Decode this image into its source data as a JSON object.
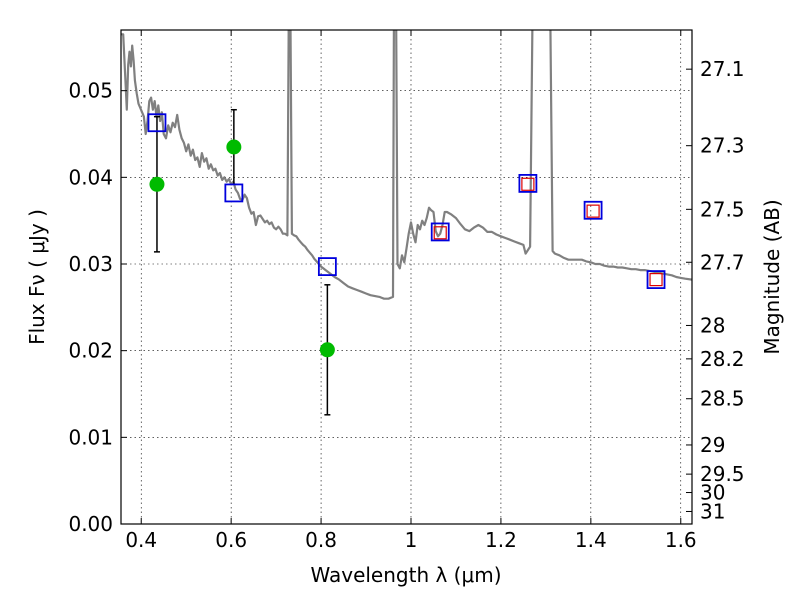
{
  "chart_data": {
    "type": "scatter",
    "xlabel": "Wavelength  λ (μm)",
    "ylabel_left": "Flux  Fν  ( μJy )",
    "ylabel_right": "Magnitude (AB)",
    "xlim": [
      0.355,
      1.625
    ],
    "ylim": [
      0.0,
      0.057
    ],
    "grid": true,
    "x_ticks": [
      {
        "value": 0.4,
        "label": "0.4"
      },
      {
        "value": 0.6,
        "label": "0.6"
      },
      {
        "value": 0.8,
        "label": "0.8"
      },
      {
        "value": 1.0,
        "label": "1"
      },
      {
        "value": 1.2,
        "label": "1.2"
      },
      {
        "value": 1.4,
        "label": "1.4"
      },
      {
        "value": 1.6,
        "label": "1.6"
      }
    ],
    "y_ticks": [
      {
        "value": 0.0,
        "label": "0.00"
      },
      {
        "value": 0.01,
        "label": "0.01"
      },
      {
        "value": 0.02,
        "label": "0.02"
      },
      {
        "value": 0.03,
        "label": "0.03"
      },
      {
        "value": 0.04,
        "label": "0.04"
      },
      {
        "value": 0.05,
        "label": "0.05"
      }
    ],
    "right_ticks": [
      {
        "mag": 27.1,
        "label": "27.1"
      },
      {
        "mag": 27.3,
        "label": "27.3"
      },
      {
        "mag": 27.5,
        "label": "27.5"
      },
      {
        "mag": 27.7,
        "label": "27.7"
      },
      {
        "mag": 28.0,
        "label": "28"
      },
      {
        "mag": 28.2,
        "label": "28.2"
      },
      {
        "mag": 28.5,
        "label": "28.5"
      },
      {
        "mag": 29.0,
        "label": "29"
      },
      {
        "mag": 29.5,
        "label": "29.5"
      },
      {
        "mag": 30.0,
        "label": "30"
      },
      {
        "mag": 31.0,
        "label": "31"
      }
    ],
    "series": [
      {
        "kind": "line",
        "color": "#808080",
        "points": [
          [
            0.355,
            0.0565
          ],
          [
            0.36,
            0.0565
          ],
          [
            0.365,
            0.051
          ],
          [
            0.368,
            0.0478
          ],
          [
            0.371,
            0.053
          ],
          [
            0.374,
            0.0545
          ],
          [
            0.377,
            0.0528
          ],
          [
            0.38,
            0.0552
          ],
          [
            0.383,
            0.0535
          ],
          [
            0.386,
            0.0512
          ],
          [
            0.39,
            0.0497
          ],
          [
            0.394,
            0.0485
          ],
          [
            0.398,
            0.048
          ],
          [
            0.402,
            0.0475
          ],
          [
            0.406,
            0.047
          ],
          [
            0.41,
            0.045
          ],
          [
            0.414,
            0.0465
          ],
          [
            0.418,
            0.0488
          ],
          [
            0.422,
            0.0492
          ],
          [
            0.426,
            0.0478
          ],
          [
            0.43,
            0.0488
          ],
          [
            0.434,
            0.047
          ],
          [
            0.438,
            0.0483
          ],
          [
            0.442,
            0.0465
          ],
          [
            0.446,
            0.0475
          ],
          [
            0.45,
            0.045
          ],
          [
            0.455,
            0.0445
          ],
          [
            0.46,
            0.046
          ],
          [
            0.465,
            0.0452
          ],
          [
            0.47,
            0.0463
          ],
          [
            0.475,
            0.0458
          ],
          [
            0.48,
            0.0472
          ],
          [
            0.485,
            0.0455
          ],
          [
            0.49,
            0.0445
          ],
          [
            0.495,
            0.044
          ],
          [
            0.5,
            0.043
          ],
          [
            0.505,
            0.0438
          ],
          [
            0.51,
            0.0425
          ],
          [
            0.515,
            0.0432
          ],
          [
            0.52,
            0.042
          ],
          [
            0.525,
            0.0423
          ],
          [
            0.53,
            0.0412
          ],
          [
            0.535,
            0.0428
          ],
          [
            0.54,
            0.0418
          ],
          [
            0.545,
            0.0422
          ],
          [
            0.55,
            0.041
          ],
          [
            0.555,
            0.0415
          ],
          [
            0.56,
            0.0408
          ],
          [
            0.565,
            0.041
          ],
          [
            0.57,
            0.0402
          ],
          [
            0.575,
            0.0405
          ],
          [
            0.58,
            0.0397
          ],
          [
            0.585,
            0.04
          ],
          [
            0.59,
            0.0395
          ],
          [
            0.595,
            0.0398
          ],
          [
            0.6,
            0.0392
          ],
          [
            0.605,
            0.0395
          ],
          [
            0.61,
            0.0386
          ],
          [
            0.615,
            0.0382
          ],
          [
            0.62,
            0.0375
          ],
          [
            0.625,
            0.0374
          ],
          [
            0.63,
            0.038
          ],
          [
            0.635,
            0.0376
          ],
          [
            0.64,
            0.0365
          ],
          [
            0.645,
            0.0358
          ],
          [
            0.65,
            0.036
          ],
          [
            0.655,
            0.0345
          ],
          [
            0.66,
            0.0355
          ],
          [
            0.665,
            0.0356
          ],
          [
            0.67,
            0.0352
          ],
          [
            0.675,
            0.0348
          ],
          [
            0.68,
            0.035
          ],
          [
            0.685,
            0.0346
          ],
          [
            0.69,
            0.0348
          ],
          [
            0.695,
            0.0342
          ],
          [
            0.7,
            0.034
          ],
          [
            0.705,
            0.0343
          ],
          [
            0.71,
            0.034
          ],
          [
            0.715,
            0.0335
          ],
          [
            0.72,
            0.0335
          ],
          [
            0.725,
            0.0333
          ],
          [
            0.728,
            0.0575
          ],
          [
            0.732,
            0.0575
          ],
          [
            0.735,
            0.0335
          ],
          [
            0.74,
            0.0333
          ],
          [
            0.745,
            0.0332
          ],
          [
            0.75,
            0.0328
          ],
          [
            0.755,
            0.0325
          ],
          [
            0.76,
            0.0322
          ],
          [
            0.765,
            0.032
          ],
          [
            0.77,
            0.0316
          ],
          [
            0.775,
            0.0313
          ],
          [
            0.78,
            0.031
          ],
          [
            0.785,
            0.0306
          ],
          [
            0.79,
            0.0303
          ],
          [
            0.795,
            0.03
          ],
          [
            0.8,
            0.0297
          ],
          [
            0.81,
            0.0293
          ],
          [
            0.82,
            0.0289
          ],
          [
            0.83,
            0.0285
          ],
          [
            0.84,
            0.0282
          ],
          [
            0.85,
            0.0278
          ],
          [
            0.86,
            0.0274
          ],
          [
            0.87,
            0.0272
          ],
          [
            0.88,
            0.027
          ],
          [
            0.89,
            0.0268
          ],
          [
            0.9,
            0.0266
          ],
          [
            0.91,
            0.0264
          ],
          [
            0.92,
            0.0263
          ],
          [
            0.93,
            0.0262
          ],
          [
            0.94,
            0.026
          ],
          [
            0.95,
            0.026
          ],
          [
            0.96,
            0.0262
          ],
          [
            0.962,
            0.0575
          ],
          [
            0.967,
            0.0575
          ],
          [
            0.97,
            0.03
          ],
          [
            0.975,
            0.0295
          ],
          [
            0.98,
            0.031
          ],
          [
            0.985,
            0.0302
          ],
          [
            0.99,
            0.0318
          ],
          [
            0.995,
            0.0335
          ],
          [
            1.0,
            0.0348
          ],
          [
            1.005,
            0.0335
          ],
          [
            1.01,
            0.0325
          ],
          [
            1.015,
            0.0345
          ],
          [
            1.02,
            0.034
          ],
          [
            1.025,
            0.035
          ],
          [
            1.03,
            0.0345
          ],
          [
            1.035,
            0.0353
          ],
          [
            1.04,
            0.0365
          ],
          [
            1.045,
            0.0362
          ],
          [
            1.05,
            0.036
          ],
          [
            1.055,
            0.0338
          ],
          [
            1.06,
            0.0332
          ],
          [
            1.065,
            0.0335
          ],
          [
            1.07,
            0.0345
          ],
          [
            1.075,
            0.036
          ],
          [
            1.08,
            0.036
          ],
          [
            1.09,
            0.0357
          ],
          [
            1.1,
            0.0353
          ],
          [
            1.11,
            0.0346
          ],
          [
            1.12,
            0.034
          ],
          [
            1.13,
            0.0338
          ],
          [
            1.14,
            0.0342
          ],
          [
            1.15,
            0.0345
          ],
          [
            1.16,
            0.0342
          ],
          [
            1.17,
            0.0337
          ],
          [
            1.18,
            0.0337
          ],
          [
            1.19,
            0.0334
          ],
          [
            1.2,
            0.0332
          ],
          [
            1.21,
            0.033
          ],
          [
            1.22,
            0.0328
          ],
          [
            1.23,
            0.0326
          ],
          [
            1.24,
            0.0324
          ],
          [
            1.25,
            0.0322
          ],
          [
            1.255,
            0.0312
          ],
          [
            1.265,
            0.032
          ],
          [
            1.27,
            0.0575
          ],
          [
            1.31,
            0.0575
          ],
          [
            1.315,
            0.0315
          ],
          [
            1.32,
            0.0312
          ],
          [
            1.33,
            0.031
          ],
          [
            1.34,
            0.0307
          ],
          [
            1.35,
            0.0305
          ],
          [
            1.36,
            0.0305
          ],
          [
            1.37,
            0.0305
          ],
          [
            1.38,
            0.0305
          ],
          [
            1.39,
            0.0303
          ],
          [
            1.4,
            0.0302
          ],
          [
            1.41,
            0.03
          ],
          [
            1.42,
            0.03
          ],
          [
            1.43,
            0.0298
          ],
          [
            1.44,
            0.0297
          ],
          [
            1.45,
            0.0297
          ],
          [
            1.46,
            0.0296
          ],
          [
            1.47,
            0.0296
          ],
          [
            1.48,
            0.0295
          ],
          [
            1.49,
            0.0294
          ],
          [
            1.5,
            0.0294
          ],
          [
            1.51,
            0.0293
          ],
          [
            1.52,
            0.0293
          ],
          [
            1.53,
            0.0292
          ],
          [
            1.54,
            0.0291
          ],
          [
            1.55,
            0.029
          ],
          [
            1.56,
            0.0289
          ],
          [
            1.57,
            0.0288
          ],
          [
            1.58,
            0.0287
          ],
          [
            1.59,
            0.0285
          ],
          [
            1.6,
            0.0284
          ],
          [
            1.61,
            0.0283
          ],
          [
            1.625,
            0.0282
          ]
        ]
      },
      {
        "kind": "markers",
        "marker": "circle",
        "color": "#00bb00",
        "points": [
          {
            "x": 0.435,
            "y": 0.0392,
            "err": 0.0078
          },
          {
            "x": 0.606,
            "y": 0.0435,
            "err": 0.0043
          },
          {
            "x": 0.814,
            "y": 0.0201,
            "err": 0.0075
          }
        ]
      },
      {
        "kind": "markers",
        "marker": "square-blue",
        "color": "#0000dd",
        "points": [
          {
            "x": 0.435,
            "y": 0.0463
          },
          {
            "x": 0.606,
            "y": 0.0382
          },
          {
            "x": 0.814,
            "y": 0.0297
          },
          {
            "x": 1.065,
            "y": 0.0337
          },
          {
            "x": 1.26,
            "y": 0.0393
          },
          {
            "x": 1.405,
            "y": 0.0362
          },
          {
            "x": 1.545,
            "y": 0.0282
          }
        ]
      },
      {
        "kind": "markers",
        "marker": "square-red",
        "color": "#dd0000",
        "points": [
          {
            "x": 1.065,
            "y": 0.0336
          },
          {
            "x": 1.26,
            "y": 0.0392
          },
          {
            "x": 1.405,
            "y": 0.0361
          },
          {
            "x": 1.545,
            "y": 0.0282
          }
        ]
      }
    ]
  }
}
